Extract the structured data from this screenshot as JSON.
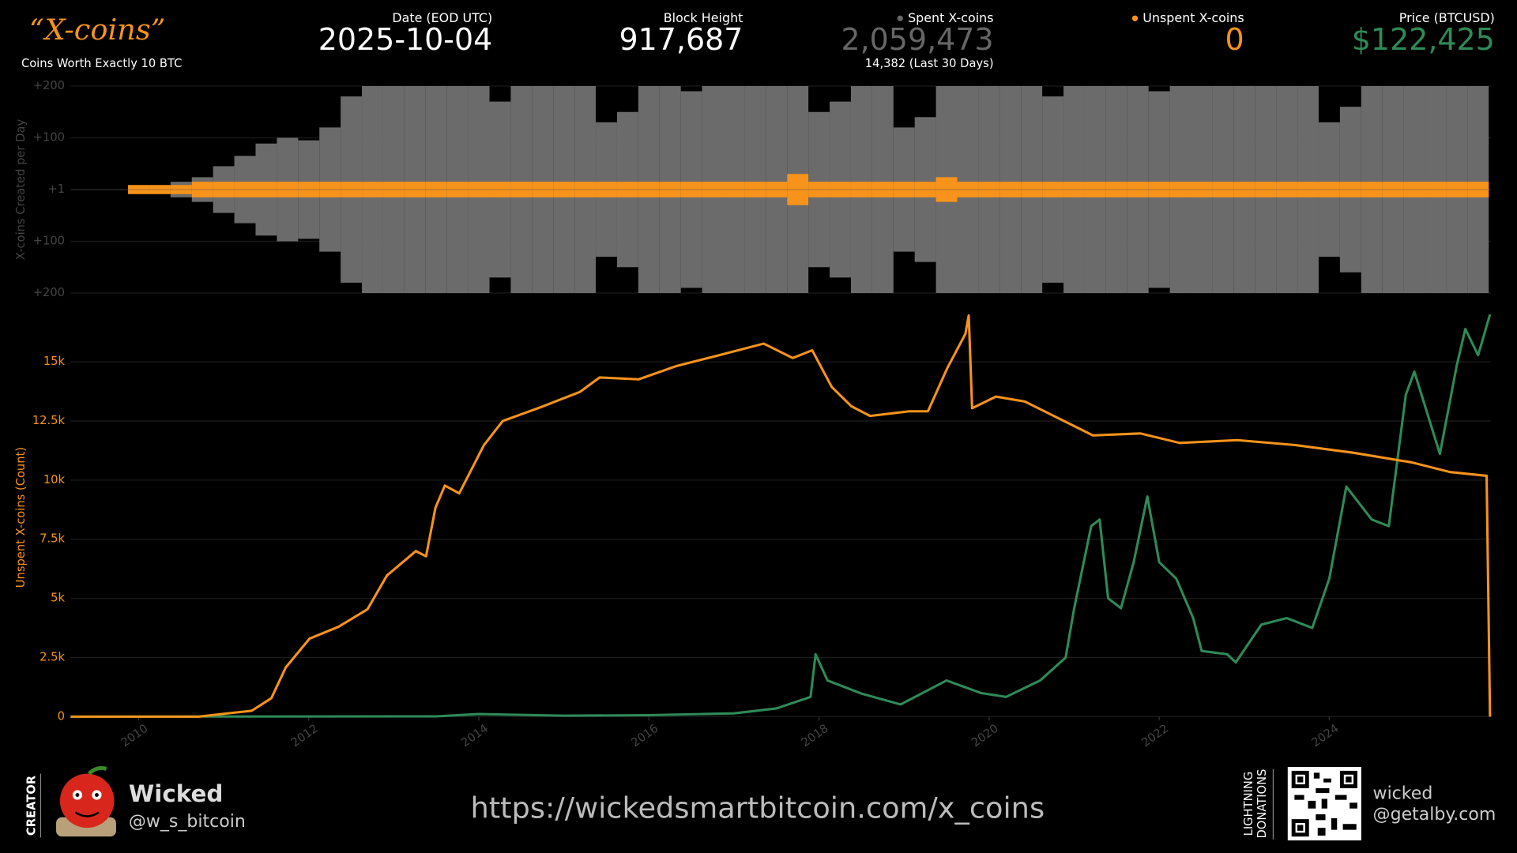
{
  "header": {
    "title": "“X-coins”",
    "subtitle": "Coins Worth Exactly 10 BTC"
  },
  "stats": [
    {
      "label": "Date (EOD UTC)",
      "value": "2025-10-04",
      "color": "#ffffff"
    },
    {
      "label": "Block Height",
      "value": "917,687",
      "color": "#ffffff"
    },
    {
      "label": "Spent X-coins",
      "value": "2,059,473",
      "note": "14,382 (Last 30 Days)",
      "color": "#666666",
      "dot": "#666666"
    },
    {
      "label": "Unspent X-coins",
      "value": "0",
      "color": "#f7931a",
      "dot": "#f7931a"
    },
    {
      "label": "Price (BTCUSD)",
      "value": "$122,425",
      "color": "#2e8b57"
    }
  ],
  "chart_data": [
    {
      "type": "bar",
      "y_label": "X-coins Created per Day",
      "ytick_labels": [
        "+200",
        "+100",
        "+1",
        "+100",
        "+200"
      ],
      "xlim": [
        2009.2,
        2025.9
      ],
      "x": [
        2009.5,
        2009.75,
        2010,
        2010.25,
        2010.5,
        2010.75,
        2011,
        2011.25,
        2011.5,
        2011.75,
        2012,
        2012.25,
        2012.5,
        2012.75,
        2013,
        2013.25,
        2013.5,
        2013.75,
        2014,
        2014.25,
        2014.5,
        2014.75,
        2015,
        2015.25,
        2015.5,
        2015.75,
        2016,
        2016.25,
        2016.5,
        2016.75,
        2017,
        2017.25,
        2017.5,
        2017.75,
        2018,
        2018.25,
        2018.5,
        2018.75,
        2019,
        2019.25,
        2019.5,
        2019.75,
        2020,
        2020.25,
        2020.5,
        2020.75,
        2021,
        2021.25,
        2021.5,
        2021.75,
        2022,
        2022.25,
        2022.5,
        2022.75,
        2023,
        2023.25,
        2023.5,
        2023.75,
        2024,
        2024.25,
        2024.5,
        2024.75,
        2025,
        2025.25,
        2025.5,
        2025.75
      ],
      "series": [
        {
          "color": "#6b6b6b",
          "values": [
            0,
            0,
            1,
            1,
            2,
            3,
            8,
            20,
            60,
            100,
            80,
            120,
            180,
            200,
            200,
            200,
            200,
            200,
            200,
            170,
            200,
            200,
            200,
            200,
            130,
            150,
            200,
            200,
            190,
            200,
            200,
            200,
            200,
            200,
            150,
            170,
            200,
            200,
            120,
            140,
            200,
            200,
            200,
            200,
            200,
            180,
            200,
            200,
            200,
            200,
            190,
            200,
            200,
            200,
            200,
            200,
            200,
            200,
            130,
            160,
            200,
            200,
            200,
            200,
            200,
            200
          ]
        },
        {
          "color": "#f7931a",
          "values": [
            0,
            0,
            1.5,
            1.5,
            1.5,
            2,
            2,
            2,
            2,
            2,
            2,
            2,
            2,
            2,
            2,
            2,
            2,
            2,
            2,
            2,
            2,
            2,
            2,
            2,
            2,
            2,
            2,
            2,
            2,
            2,
            2,
            2,
            2,
            4,
            2,
            2,
            2,
            2,
            2,
            2,
            3,
            2,
            2,
            2,
            2,
            2,
            2,
            2,
            2,
            2,
            2,
            2,
            2,
            2,
            2,
            2,
            2,
            2,
            2,
            2,
            2,
            2,
            2,
            2,
            2,
            2
          ]
        }
      ]
    },
    {
      "type": "line",
      "y_label": "Unspent X-coins (Count)",
      "xlim": [
        2009.2,
        2025.9
      ],
      "xticks": [
        2010,
        2012,
        2014,
        2016,
        2018,
        2020,
        2022,
        2024
      ],
      "ylim": [
        0,
        17500
      ],
      "yticks": [
        0,
        {
          "value": 2500,
          "label": "2.5k"
        },
        {
          "value": 5000,
          "label": "5k"
        },
        {
          "value": 7500,
          "label": "7.5k"
        },
        {
          "value": 10000,
          "label": "10k"
        },
        {
          "value": 12500,
          "label": "12.5k"
        },
        {
          "value": 15000,
          "label": "15k"
        }
      ],
      "y2lim": [
        0,
        126000
      ],
      "grid": true,
      "series": [
        {
          "color": "#2e8b57",
          "axis": "y2",
          "x": [
            2009.2,
            2013.5,
            2014.0,
            2015.0,
            2016.0,
            2017.0,
            2017.5,
            2017.9,
            2017.96,
            2018.1,
            2018.5,
            2018.96,
            2019.5,
            2019.9,
            2020.2,
            2020.6,
            2020.9,
            2021.0,
            2021.2,
            2021.3,
            2021.4,
            2021.55,
            2021.7,
            2021.86,
            2022.0,
            2022.2,
            2022.4,
            2022.5,
            2022.8,
            2022.9,
            2023.2,
            2023.5,
            2023.8,
            2024.0,
            2024.2,
            2024.5,
            2024.7,
            2024.9,
            2025.0,
            2025.3,
            2025.5,
            2025.6,
            2025.75,
            2025.89
          ],
          "values": [
            0,
            100,
            800,
            300,
            430,
            1000,
            2500,
            6000,
            19000,
            11000,
            7000,
            3700,
            11000,
            7200,
            6000,
            11000,
            18000,
            33000,
            58000,
            60000,
            36000,
            33000,
            47000,
            67000,
            47000,
            42000,
            30000,
            20000,
            19000,
            16500,
            28000,
            30000,
            27000,
            42000,
            70000,
            60000,
            58000,
            98000,
            105000,
            80000,
            107000,
            118000,
            110000,
            122425
          ]
        },
        {
          "color": "#f7931a",
          "x": [
            2009.2,
            2010.7,
            2011.33,
            2011.56,
            2011.73,
            2012.01,
            2012.35,
            2012.69,
            2012.92,
            2013.26,
            2013.38,
            2013.49,
            2013.6,
            2013.77,
            2014.06,
            2014.28,
            2014.74,
            2015.19,
            2015.42,
            2015.88,
            2016.33,
            2016.78,
            2017.35,
            2017.69,
            2017.92,
            2018.15,
            2018.38,
            2018.6,
            2019.06,
            2019.28,
            2019.51,
            2019.72,
            2019.76,
            2019.8,
            2020.08,
            2020.42,
            2020.88,
            2021.22,
            2021.78,
            2022.24,
            2022.92,
            2023.6,
            2024.28,
            2024.97,
            2025.42,
            2025.85,
            2025.89
          ],
          "values": [
            0,
            0,
            250,
            780,
            2080,
            3300,
            3800,
            4540,
            5970,
            7000,
            6780,
            8830,
            9770,
            9440,
            11480,
            12500,
            13100,
            13730,
            14340,
            14260,
            14830,
            15240,
            15770,
            15160,
            15490,
            13940,
            13120,
            12710,
            12910,
            12910,
            14750,
            16180,
            16960,
            13040,
            13530,
            13320,
            12500,
            11890,
            11970,
            11570,
            11690,
            11480,
            11160,
            10750,
            10340,
            10180,
            0
          ]
        }
      ]
    }
  ],
  "footer": {
    "creator_label": "CREATOR",
    "name": "Wicked",
    "handle": "@w_s_bitcoin",
    "url": "https://wickedsmartbitcoin.com/x_coins",
    "donation_label": [
      "LIGHTNING",
      "DONATIONS"
    ],
    "donation_name": "wicked",
    "donation_handle": "@getalby.com"
  }
}
